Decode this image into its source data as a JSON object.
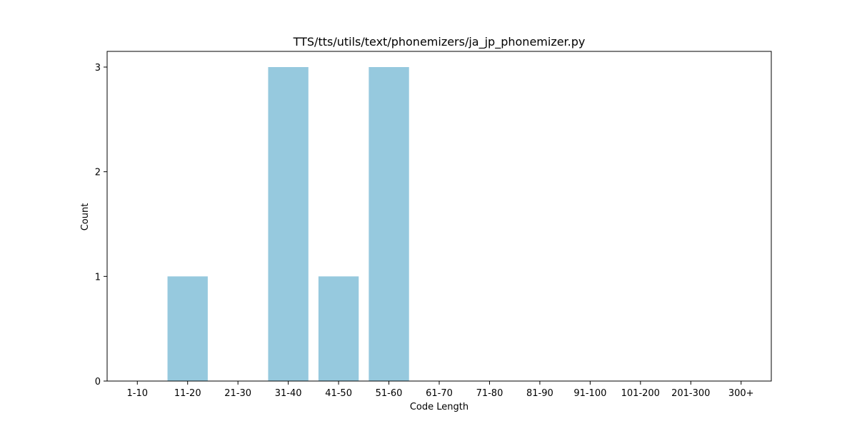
{
  "chart_data": {
    "type": "bar",
    "title": "TTS/tts/utils/text/phonemizers/ja_jp_phonemizer.py",
    "xlabel": "Code Length",
    "ylabel": "Count",
    "categories": [
      "1-10",
      "11-20",
      "21-30",
      "31-40",
      "41-50",
      "51-60",
      "61-70",
      "71-80",
      "81-90",
      "91-100",
      "101-200",
      "201-300",
      "300+"
    ],
    "values": [
      0,
      1,
      0,
      3,
      1,
      3,
      0,
      0,
      0,
      0,
      0,
      0,
      0
    ],
    "ylim": [
      0,
      3.15
    ],
    "yticks": [
      0,
      1,
      2,
      3
    ],
    "bar_color": "#96c9de",
    "grid": false,
    "legend": "none"
  }
}
